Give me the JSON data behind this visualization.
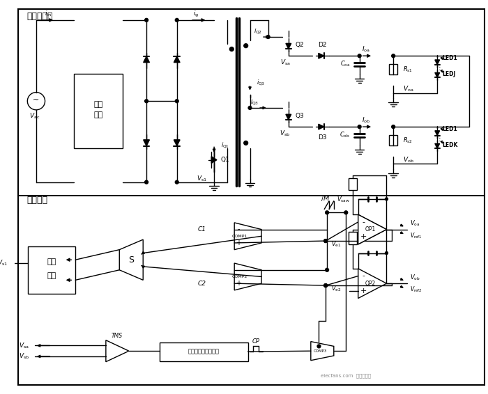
{
  "title_top": "主功率电路",
  "title_bottom": "控制环路",
  "bg_color": "#ffffff",
  "line_color": "#000000",
  "watermark": "elecfans.com  电子发烧友"
}
